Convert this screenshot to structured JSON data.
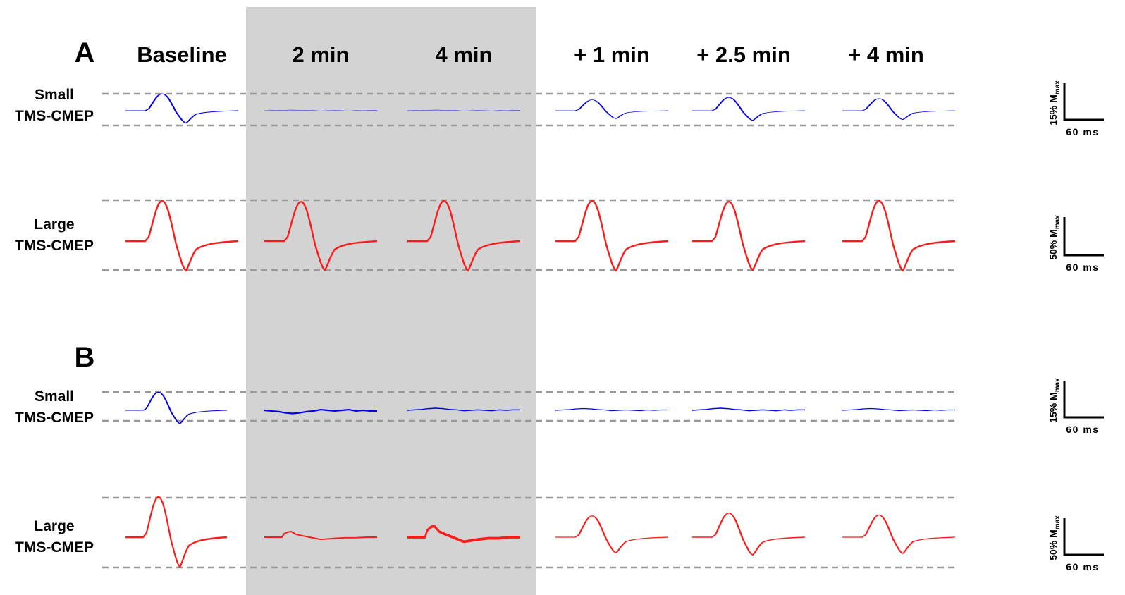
{
  "columns": [
    "Baseline",
    "2 min",
    "4 min",
    "+ 1 min",
    "+ 2.5 min",
    "+ 4 min"
  ],
  "panels": [
    {
      "label": "A",
      "rows": [
        {
          "name": [
            "Small",
            "TMS-CMEP"
          ],
          "scale": {
            "amplitude": "15% M",
            "subscript": "max",
            "time": "60 ms"
          }
        },
        {
          "name": [
            "Large",
            "TMS-CMEP"
          ],
          "scale": {
            "amplitude": "50% M",
            "subscript": "max",
            "time": "60 ms"
          }
        }
      ]
    },
    {
      "label": "B",
      "rows": [
        {
          "name": [
            "Small",
            "TMS-CMEP"
          ],
          "scale": {
            "amplitude": "15% M",
            "subscript": "max",
            "time": "60 ms"
          }
        },
        {
          "name": [
            "Large",
            "TMS-CMEP"
          ],
          "scale": {
            "amplitude": "50% M",
            "subscript": "max",
            "time": "60 ms"
          }
        }
      ]
    }
  ]
}
